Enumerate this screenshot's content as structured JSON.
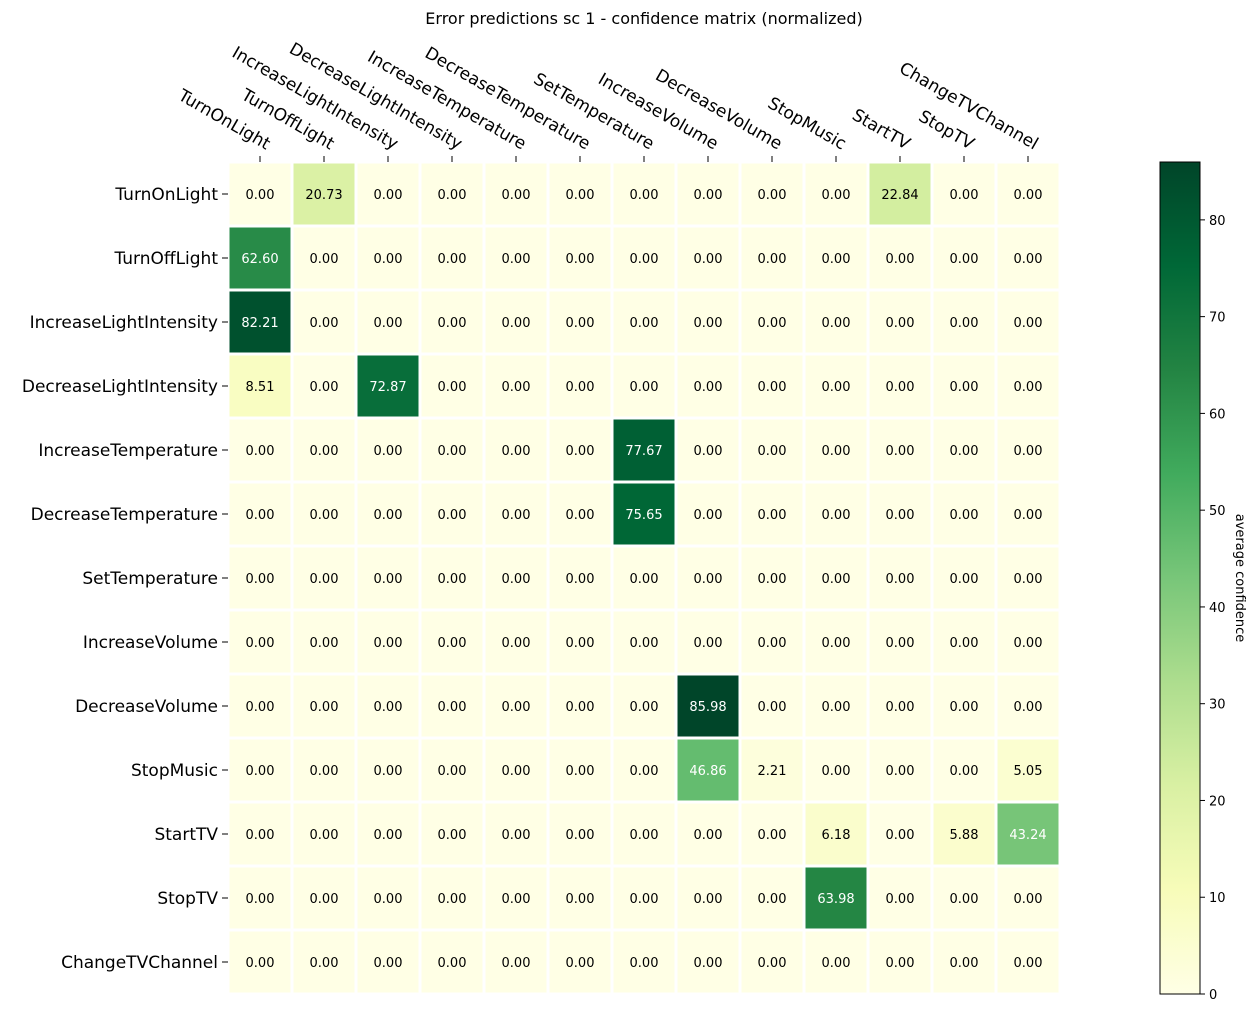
{
  "chart_data": {
    "type": "heatmap",
    "title": "Error predictions sc 1 - confidence matrix (normalized)",
    "x_labels": [
      "TurnOnLight",
      "TurnOffLight",
      "IncreaseLightIntensity",
      "DecreaseLightIntensity",
      "IncreaseTemperature",
      "DecreaseTemperature",
      "SetTemperature",
      "IncreaseVolume",
      "DecreaseVolume",
      "StopMusic",
      "StartTV",
      "StopTV",
      "ChangeTVChannel"
    ],
    "y_labels": [
      "TurnOnLight",
      "TurnOffLight",
      "IncreaseLightIntensity",
      "DecreaseLightIntensity",
      "IncreaseTemperature",
      "DecreaseTemperature",
      "SetTemperature",
      "IncreaseVolume",
      "DecreaseVolume",
      "StopMusic",
      "StartTV",
      "StopTV",
      "ChangeTVChannel"
    ],
    "values": [
      [
        0,
        20.73,
        0,
        0,
        0,
        0,
        0,
        0,
        0,
        0,
        22.84,
        0,
        0
      ],
      [
        62.6,
        0,
        0,
        0,
        0,
        0,
        0,
        0,
        0,
        0,
        0,
        0,
        0
      ],
      [
        82.21,
        0,
        0,
        0,
        0,
        0,
        0,
        0,
        0,
        0,
        0,
        0,
        0
      ],
      [
        8.51,
        0,
        72.87,
        0,
        0,
        0,
        0,
        0,
        0,
        0,
        0,
        0,
        0
      ],
      [
        0,
        0,
        0,
        0,
        0,
        0,
        77.67,
        0,
        0,
        0,
        0,
        0,
        0
      ],
      [
        0,
        0,
        0,
        0,
        0,
        0,
        75.65,
        0,
        0,
        0,
        0,
        0,
        0
      ],
      [
        0,
        0,
        0,
        0,
        0,
        0,
        0,
        0,
        0,
        0,
        0,
        0,
        0
      ],
      [
        0,
        0,
        0,
        0,
        0,
        0,
        0,
        0,
        0,
        0,
        0,
        0,
        0
      ],
      [
        0,
        0,
        0,
        0,
        0,
        0,
        0,
        85.98,
        0,
        0,
        0,
        0,
        0
      ],
      [
        0,
        0,
        0,
        0,
        0,
        0,
        0,
        46.86,
        2.21,
        0,
        0,
        0,
        5.05
      ],
      [
        0,
        0,
        0,
        0,
        0,
        0,
        0,
        0,
        0,
        6.18,
        0,
        5.88,
        43.24
      ],
      [
        0,
        0,
        0,
        0,
        0,
        0,
        0,
        0,
        0,
        63.98,
        0,
        0,
        0
      ],
      [
        0,
        0,
        0,
        0,
        0,
        0,
        0,
        0,
        0,
        0,
        0,
        0,
        0
      ]
    ],
    "value_format": "2 decimals",
    "colormap": "YlGn",
    "vmin": 0,
    "vmax": 85.98,
    "colorbar": {
      "label": "average confidence",
      "ticks": [
        0,
        10,
        20,
        30,
        40,
        50,
        60,
        70,
        80
      ],
      "placement": "right"
    },
    "x_label_position": "top",
    "grid": false
  }
}
